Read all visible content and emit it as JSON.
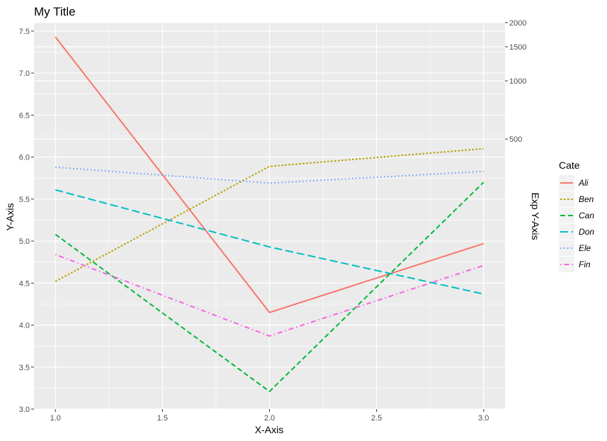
{
  "chart_data": {
    "type": "line",
    "title": "My Title",
    "xlabel": "X-Axis",
    "ylabel": "Y-Axis",
    "y2label": "Exp Y-Axis",
    "x": [
      1,
      2,
      3
    ],
    "xlim": [
      0.9,
      3.1
    ],
    "ylim": [
      3.0,
      7.6
    ],
    "xticks": [
      "1.0",
      "1.5",
      "2.0",
      "2.5",
      "3.0"
    ],
    "yticks": [
      "3.0",
      "3.5",
      "4.0",
      "4.5",
      "5.0",
      "5.5",
      "6.0",
      "6.5",
      "7.0",
      "7.5"
    ],
    "y2ticks": [
      "500",
      "1000",
      "1500",
      "2000"
    ],
    "y2_scale": "exp",
    "grid": true,
    "legend_position": "right",
    "legend_title": "Cate",
    "series": [
      {
        "name": "Ali",
        "values": [
          7.43,
          4.15,
          4.97
        ],
        "color": "#F8766D",
        "linetype": "solid"
      },
      {
        "name": "Ben",
        "values": [
          4.52,
          5.89,
          6.1
        ],
        "color": "#B79F00",
        "linetype": "dotted"
      },
      {
        "name": "Can",
        "values": [
          5.08,
          3.21,
          5.7
        ],
        "color": "#00BA38",
        "linetype": "dashed"
      },
      {
        "name": "Don",
        "values": [
          5.61,
          4.93,
          4.37
        ],
        "color": "#00BFC4",
        "linetype": "longdash"
      },
      {
        "name": "Ele",
        "values": [
          5.88,
          5.69,
          5.83
        ],
        "color": "#619CFF",
        "linetype": "dotted-fine"
      },
      {
        "name": "Fin",
        "values": [
          4.84,
          3.87,
          4.71
        ],
        "color": "#F564E3",
        "linetype": "dotdash"
      }
    ]
  }
}
